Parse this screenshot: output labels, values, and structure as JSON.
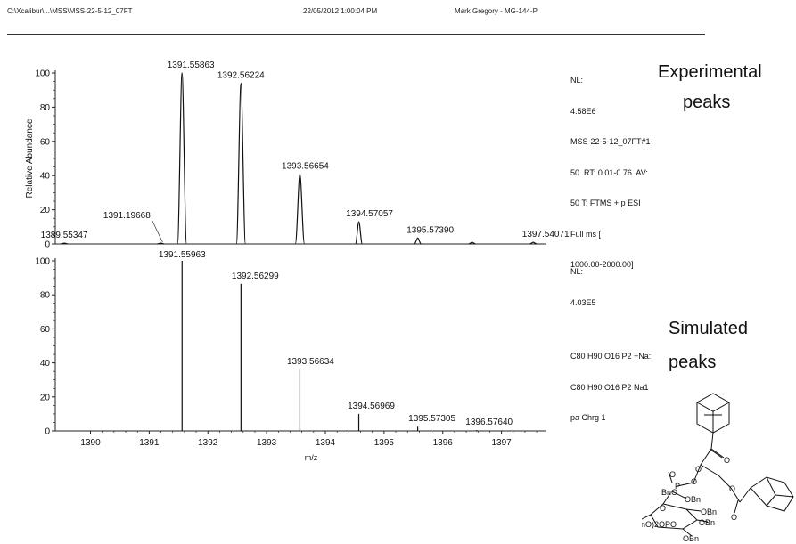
{
  "header": {
    "file_path": "C:\\Xcalibur\\...\\MSS\\MSS-22-5-12_07FT",
    "datetime": "22/05/2012 1:00:04 PM",
    "operator": "Mark Gregory - MG-144-P"
  },
  "top_info": {
    "nl_label": "NL:",
    "nl_value": "4.58E6",
    "line1": "MSS-22-5-12_07FT#1-",
    "line2": "50  RT: 0.01-0.76  AV:",
    "line3": "50 T: FTMS + p ESI",
    "line4": "Full ms [",
    "line5": "1000.00-2000.00]"
  },
  "bottom_info": {
    "nl_label": "NL:",
    "nl_value": "4.03E5",
    "line1": "C80 H90 O16 P2 +Na:",
    "line2": "C80 H90 O16 P2 Na1",
    "line3": "pa Chrg 1"
  },
  "annotations": {
    "experimental_line1": "Experimental",
    "experimental_line2": "peaks",
    "simulated_line1": "Simulated",
    "simulated_line2": "peaks"
  },
  "molecule": {
    "labels": [
      "BnO",
      "O",
      "P",
      "O",
      "OBn",
      "O",
      "(BnO)2OPO",
      "OBn",
      "OBn",
      "OBn",
      "O",
      "O",
      "O",
      "O"
    ]
  },
  "chart_data": [
    {
      "type": "line",
      "ylabel": "Relative Abundance",
      "xlabel": "",
      "xlim": [
        1389.4,
        1397.75
      ],
      "ylim": [
        0,
        100
      ],
      "yticks": [
        0,
        20,
        40,
        60,
        80,
        100
      ],
      "peaks": [
        {
          "x": 1389.55347,
          "y": 0.5,
          "label": "1389.55347"
        },
        {
          "x": 1391.19668,
          "y": 0.5,
          "label": "1391.19668"
        },
        {
          "x": 1391.55863,
          "y": 100,
          "label": "1391.55863"
        },
        {
          "x": 1392.56224,
          "y": 94,
          "label": "1392.56224"
        },
        {
          "x": 1393.56654,
          "y": 41,
          "label": "1393.56654"
        },
        {
          "x": 1394.57057,
          "y": 13,
          "label": "1394.57057"
        },
        {
          "x": 1395.5739,
          "y": 3.5,
          "label": "1395.57390"
        },
        {
          "x": 1396.5,
          "y": 1,
          "label": ""
        },
        {
          "x": 1397.54071,
          "y": 1,
          "label": "1397.54071"
        }
      ]
    },
    {
      "type": "bar",
      "ylabel": "",
      "xlabel": "m/z",
      "xlim": [
        1389.4,
        1397.75
      ],
      "ylim": [
        0,
        100
      ],
      "yticks": [
        0,
        20,
        40,
        60,
        80,
        100
      ],
      "xticks": [
        "1390",
        "1391",
        "1392",
        "1393",
        "1394",
        "1395",
        "1396",
        "1397"
      ],
      "peaks": [
        {
          "x": 1391.55963,
          "y": 100,
          "label": "1391.55963"
        },
        {
          "x": 1392.56299,
          "y": 86.5,
          "label": "1392.56299"
        },
        {
          "x": 1393.56634,
          "y": 36,
          "label": "1393.56634"
        },
        {
          "x": 1394.56969,
          "y": 10,
          "label": "1394.56969"
        },
        {
          "x": 1395.57305,
          "y": 2.5,
          "label": "1395.57305"
        },
        {
          "x": 1396.5764,
          "y": 0.5,
          "label": "1396.57640"
        }
      ]
    }
  ]
}
